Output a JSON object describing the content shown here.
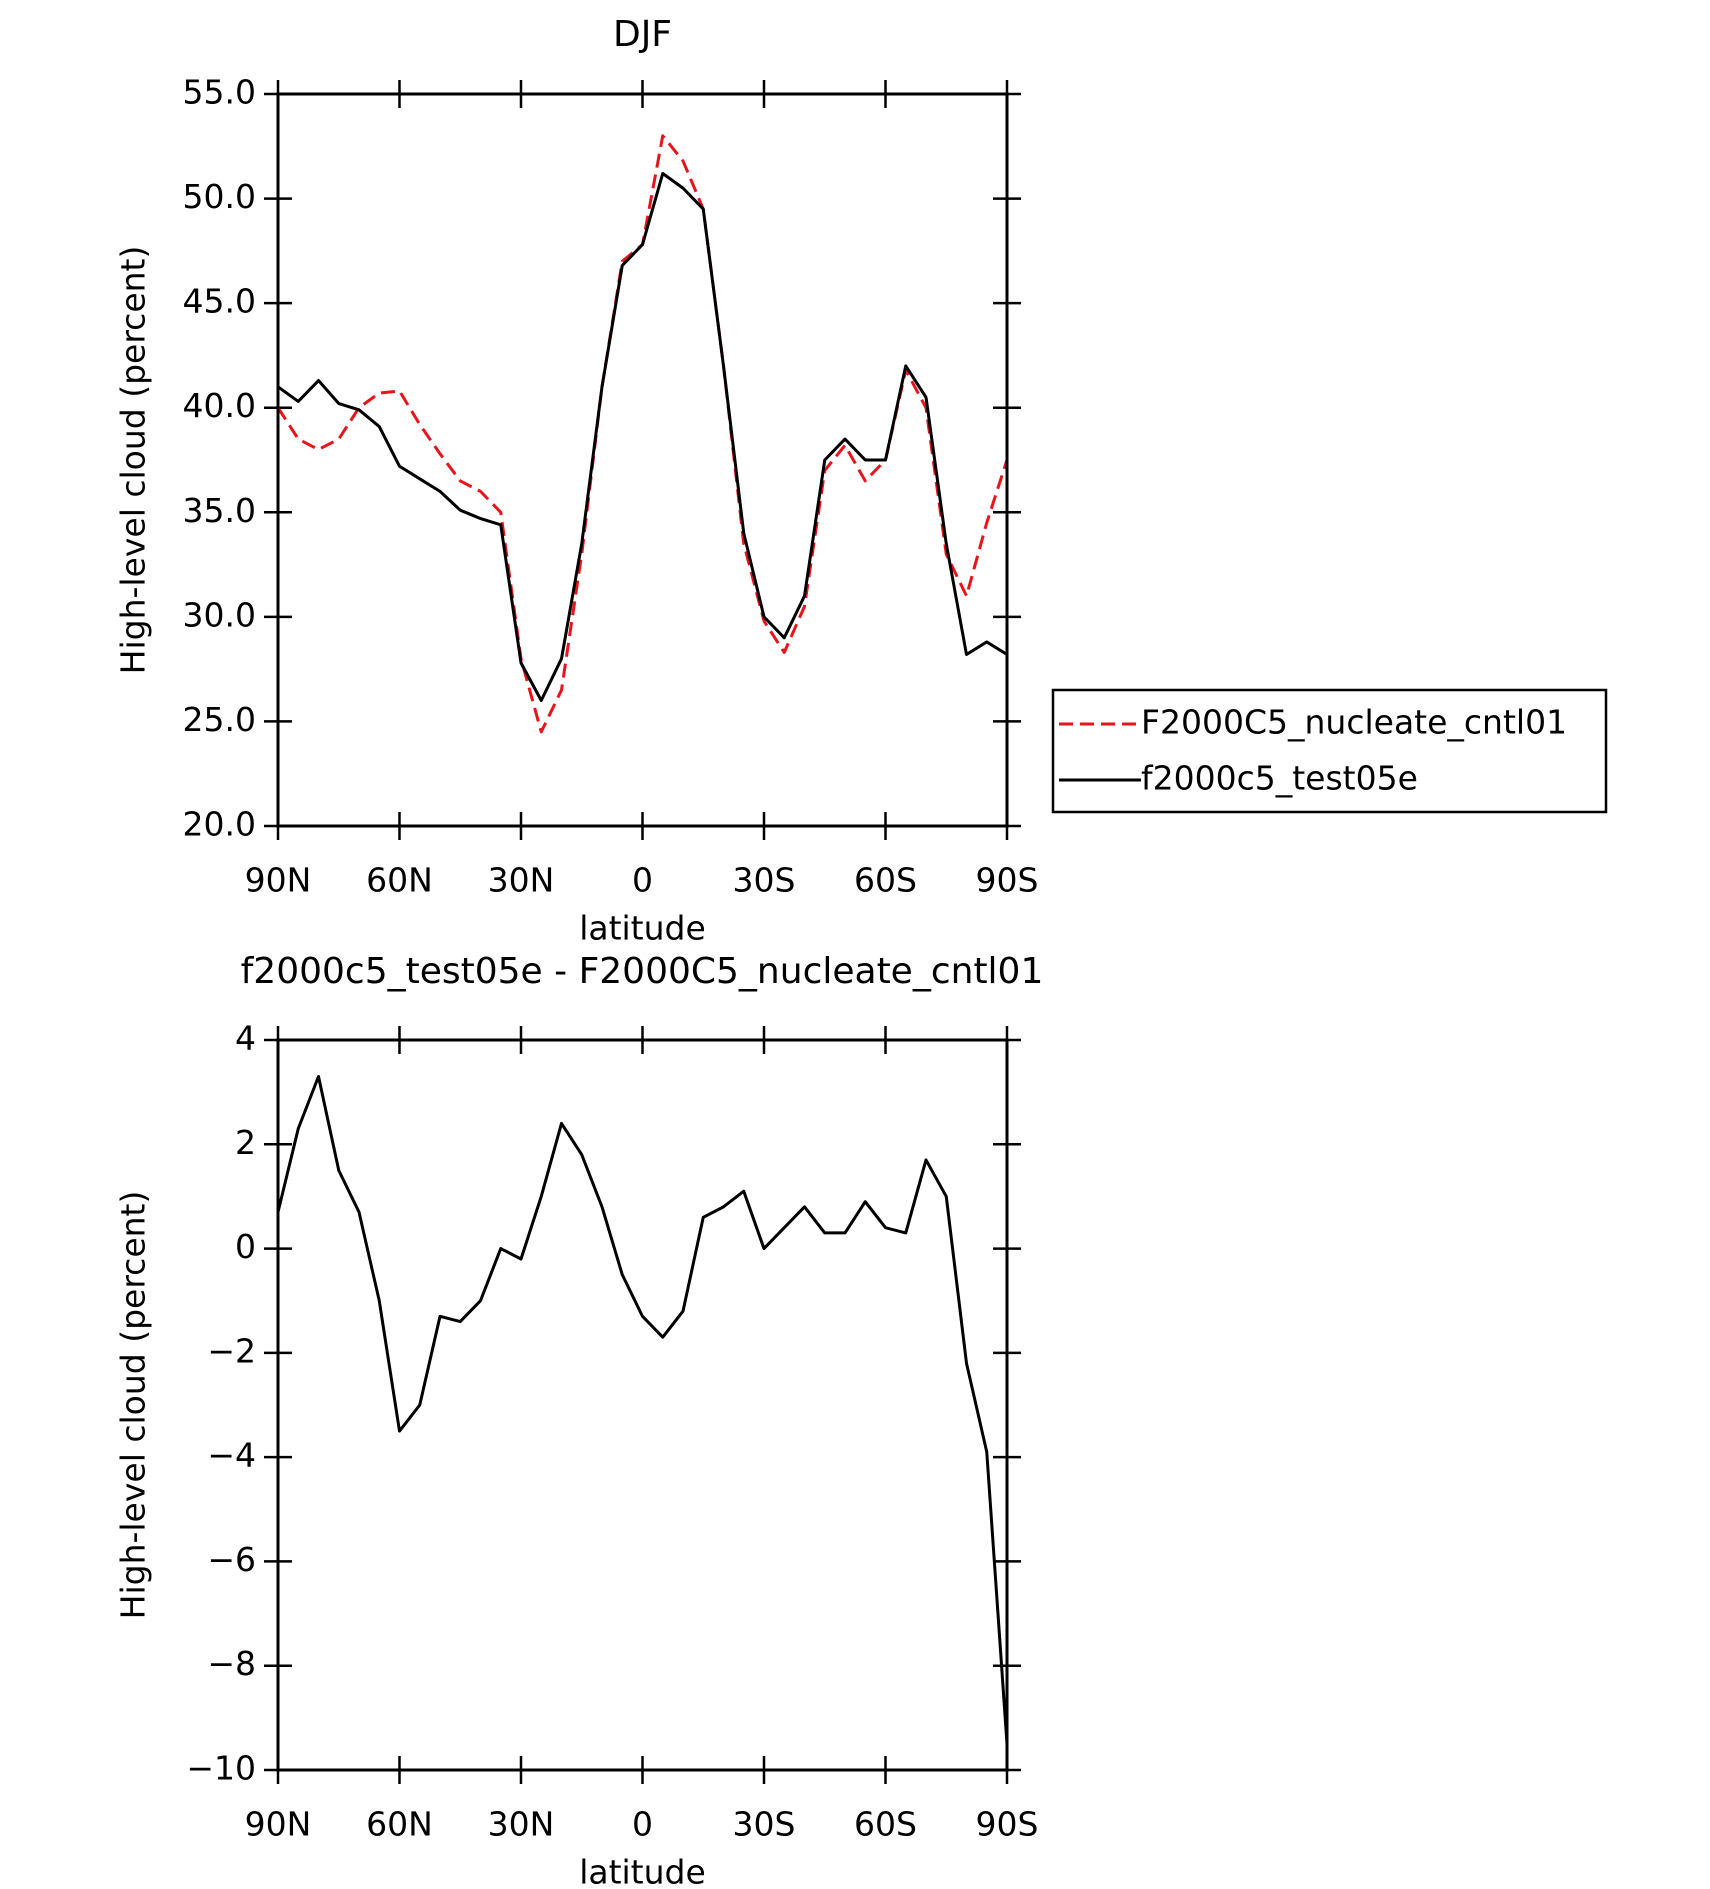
{
  "chart_data": [
    {
      "type": "line",
      "title": "DJF",
      "xlabel": "latitude",
      "ylabel": "High-level cloud (percent)",
      "x": [
        90,
        85,
        80,
        75,
        70,
        65,
        60,
        55,
        50,
        45,
        40,
        35,
        30,
        25,
        20,
        15,
        10,
        5,
        0,
        -5,
        -10,
        -15,
        -20,
        -25,
        -30,
        -35,
        -40,
        -45,
        -50,
        -55,
        -60,
        -65,
        -70,
        -75,
        -80,
        -85,
        -90
      ],
      "series": [
        {
          "name": "F2000C5_nucleate_cntl01",
          "color": "#e8141b",
          "line_style": "dashed",
          "values": [
            40.0,
            38.5,
            38.0,
            38.5,
            40.0,
            40.7,
            40.8,
            39.2,
            37.8,
            36.5,
            36.0,
            35.0,
            28.0,
            24.5,
            26.5,
            33.0,
            41.0,
            47.0,
            47.8,
            53.0,
            51.8,
            49.5,
            42.0,
            33.5,
            29.8,
            28.3,
            30.5,
            37.0,
            38.2,
            36.5,
            37.5,
            41.8,
            40.0,
            33.0,
            31.0,
            34.5,
            37.5
          ]
        },
        {
          "name": "f2000c5_test05e",
          "color": "#000000",
          "line_style": "solid",
          "values": [
            41.0,
            40.3,
            41.3,
            40.2,
            39.9,
            39.1,
            37.2,
            36.6,
            36.0,
            35.1,
            34.7,
            34.4,
            27.8,
            26.0,
            28.0,
            33.5,
            41.0,
            46.8,
            47.8,
            51.2,
            50.5,
            49.5,
            42.0,
            34.0,
            30.0,
            29.0,
            31.0,
            37.5,
            38.5,
            37.5,
            37.5,
            42.0,
            40.5,
            33.5,
            28.2,
            28.8,
            28.2
          ]
        }
      ],
      "xlim": [
        90,
        -90
      ],
      "xticks": [
        {
          "value": 90,
          "label": "90N"
        },
        {
          "value": 60,
          "label": "60N"
        },
        {
          "value": 30,
          "label": "30N"
        },
        0,
        {
          "value": -30,
          "label": "30S"
        },
        {
          "value": -60,
          "label": "60S"
        },
        {
          "value": -90,
          "label": "90S"
        }
      ],
      "ylim": [
        20,
        55
      ],
      "yticks": [
        {
          "value": 20,
          "label": "20.0"
        },
        {
          "value": 25,
          "label": "25.0"
        },
        {
          "value": 30,
          "label": "30.0"
        },
        {
          "value": 35,
          "label": "35.0"
        },
        {
          "value": 40,
          "label": "40.0"
        },
        {
          "value": 45,
          "label": "45.0"
        },
        {
          "value": 50,
          "label": "50.0"
        },
        {
          "value": 55,
          "label": "55.0"
        }
      ],
      "legend": "outside-right"
    },
    {
      "type": "line",
      "title": "f2000c5_test05e - F2000C5_nucleate_cntl01",
      "xlabel": "latitude",
      "ylabel": "High-level cloud (percent)",
      "x": [
        90,
        85,
        80,
        75,
        70,
        65,
        60,
        55,
        50,
        45,
        40,
        35,
        30,
        25,
        20,
        15,
        10,
        5,
        0,
        -5,
        -10,
        -15,
        -20,
        -25,
        -30,
        -35,
        -40,
        -45,
        -50,
        -55,
        -60,
        -65,
        -70,
        -75,
        -80,
        -85,
        -90
      ],
      "series": [
        {
          "color": "#000000",
          "line_style": "solid",
          "values": [
            0.7,
            2.3,
            3.3,
            1.5,
            0.7,
            -1.0,
            -3.5,
            -3.0,
            -1.3,
            -1.4,
            -1.0,
            0.0,
            -0.2,
            1.0,
            2.4,
            1.8,
            0.8,
            -0.5,
            -1.3,
            -1.7,
            -1.2,
            0.6,
            0.8,
            1.1,
            0.0,
            0.4,
            0.8,
            0.3,
            0.3,
            0.9,
            0.4,
            0.3,
            1.7,
            1.0,
            -2.2,
            -3.9,
            -9.5
          ]
        }
      ],
      "xlim": [
        90,
        -90
      ],
      "xticks": [
        {
          "value": 90,
          "label": "90N"
        },
        {
          "value": 60,
          "label": "60N"
        },
        {
          "value": 30,
          "label": "30N"
        },
        0,
        {
          "value": -30,
          "label": "30S"
        },
        {
          "value": -60,
          "label": "60S"
        },
        {
          "value": -90,
          "label": "90S"
        }
      ],
      "ylim": [
        -10,
        4
      ],
      "yticks": [
        {
          "value": -10,
          "label": "−10"
        },
        {
          "value": -8,
          "label": "−8"
        },
        {
          "value": -6,
          "label": "−6"
        },
        {
          "value": -4,
          "label": "−4"
        },
        {
          "value": -2,
          "label": "−2"
        },
        0,
        2,
        4
      ]
    }
  ]
}
